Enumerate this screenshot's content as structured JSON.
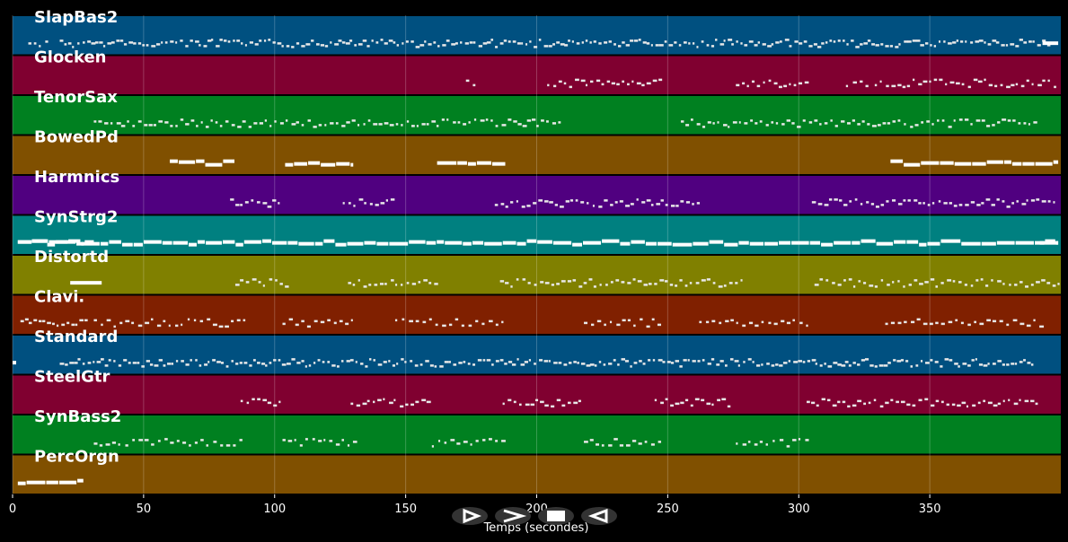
{
  "chart_data": {
    "type": "piano-roll",
    "xlabel": "Temps (secondes)",
    "xlim": [
      0,
      400
    ],
    "xticks": [
      0,
      50,
      100,
      150,
      200,
      250,
      300,
      350
    ],
    "grid": true,
    "tracks": [
      {
        "name": "SlapBas2",
        "color": "#005080",
        "segments": [
          [
            6,
            9,
            "sparse"
          ],
          [
            10,
            13,
            "sparse"
          ],
          [
            18,
            395,
            "dense"
          ],
          [
            393,
            399,
            "bar"
          ]
        ]
      },
      {
        "name": "Glocken",
        "color": "#800030",
        "segments": [
          [
            173,
            178,
            "sparse"
          ],
          [
            204,
            248,
            "mid"
          ],
          [
            276,
            303,
            "mid"
          ],
          [
            318,
            326,
            "sparse"
          ],
          [
            329,
            399,
            "mid"
          ]
        ]
      },
      {
        "name": "TenorSax",
        "color": "#008020",
        "segments": [
          [
            31,
            210,
            "mid"
          ],
          [
            255,
            390,
            "mid"
          ]
        ]
      },
      {
        "name": "BowedPd",
        "color": "#805000",
        "segments": [
          [
            60,
            85,
            "long"
          ],
          [
            104,
            130,
            "long"
          ],
          [
            162,
            188,
            "long"
          ],
          [
            335,
            399,
            "long"
          ]
        ]
      },
      {
        "name": "Harmnics",
        "color": "#500080",
        "segments": [
          [
            83,
            103,
            "mid"
          ],
          [
            126,
            146,
            "mid"
          ],
          [
            184,
            262,
            "mid"
          ],
          [
            305,
            399,
            "mid"
          ]
        ]
      },
      {
        "name": "SynStrg2",
        "color": "#008080",
        "segments": [
          [
            2,
            399,
            "long"
          ],
          [
            2,
            31,
            "long"
          ],
          [
            392,
            399,
            "bar"
          ]
        ]
      },
      {
        "name": "Distortd",
        "color": "#808000",
        "segments": [
          [
            22,
            34,
            "bar"
          ],
          [
            85,
            106,
            "mid"
          ],
          [
            128,
            162,
            "mid"
          ],
          [
            186,
            278,
            "mid"
          ],
          [
            306,
            399,
            "mid"
          ]
        ]
      },
      {
        "name": "Clavi.",
        "color": "#802000",
        "segments": [
          [
            3,
            28,
            "dense"
          ],
          [
            31,
            88,
            "sparse"
          ],
          [
            103,
            131,
            "sparse"
          ],
          [
            146,
            188,
            "sparse"
          ],
          [
            218,
            247,
            "sparse"
          ],
          [
            262,
            305,
            "sparse"
          ],
          [
            333,
            393,
            "sparse"
          ]
        ]
      },
      {
        "name": "Standard",
        "color": "#005080",
        "segments": [
          [
            0,
            1,
            "bar"
          ],
          [
            18,
            390,
            "dense"
          ]
        ]
      },
      {
        "name": "SteelGtr",
        "color": "#800030",
        "segments": [
          [
            87,
            103,
            "mid"
          ],
          [
            129,
            160,
            "mid"
          ],
          [
            187,
            216,
            "mid"
          ],
          [
            245,
            275,
            "mid"
          ],
          [
            303,
            392,
            "mid"
          ]
        ]
      },
      {
        "name": "SynBass2",
        "color": "#008020",
        "segments": [
          [
            31,
            88,
            "sparse"
          ],
          [
            103,
            131,
            "sparse"
          ],
          [
            160,
            188,
            "sparse"
          ],
          [
            218,
            247,
            "sparse"
          ],
          [
            276,
            305,
            "sparse"
          ]
        ]
      },
      {
        "name": "PercOrgn",
        "color": "#805000",
        "segments": [
          [
            2,
            27,
            "long"
          ]
        ]
      }
    ]
  },
  "controls": [
    {
      "id": "play",
      "icon": "play-icon"
    },
    {
      "id": "forward",
      "icon": "fast-forward-icon"
    },
    {
      "id": "stop",
      "icon": "stop-icon"
    },
    {
      "id": "rewind",
      "icon": "rewind-icon"
    }
  ]
}
